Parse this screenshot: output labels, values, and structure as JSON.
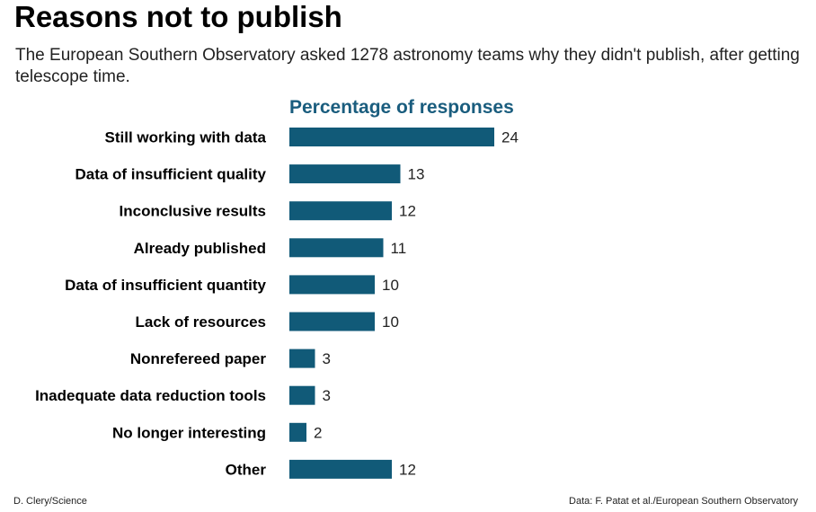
{
  "chart_data": {
    "type": "bar",
    "orientation": "horizontal",
    "title": "Reasons not to publish",
    "subtitle": "The European Southern Observatory asked 1278 astronomy teams why they didn't publish, after getting telescope time.",
    "axis_title": "Percentage of responses",
    "categories": [
      "Still working with data",
      "Data of insufficient quality",
      "Inconclusive results",
      "Already published",
      "Data of insufficient quantity",
      "Lack of resources",
      "Nonrefereed paper",
      "Inadequate data reduction tools",
      "No longer interesting",
      "Other"
    ],
    "values": [
      24,
      13,
      12,
      11,
      10,
      10,
      3,
      3,
      2,
      12
    ],
    "xlim": [
      0,
      24
    ],
    "grid": false,
    "bar_color": "#115a78",
    "axis_title_color": "#1a5d7e"
  },
  "credits": {
    "left": "D. Clery/Science",
    "right": "Data: F. Patat et al./European Southern Observatory"
  }
}
